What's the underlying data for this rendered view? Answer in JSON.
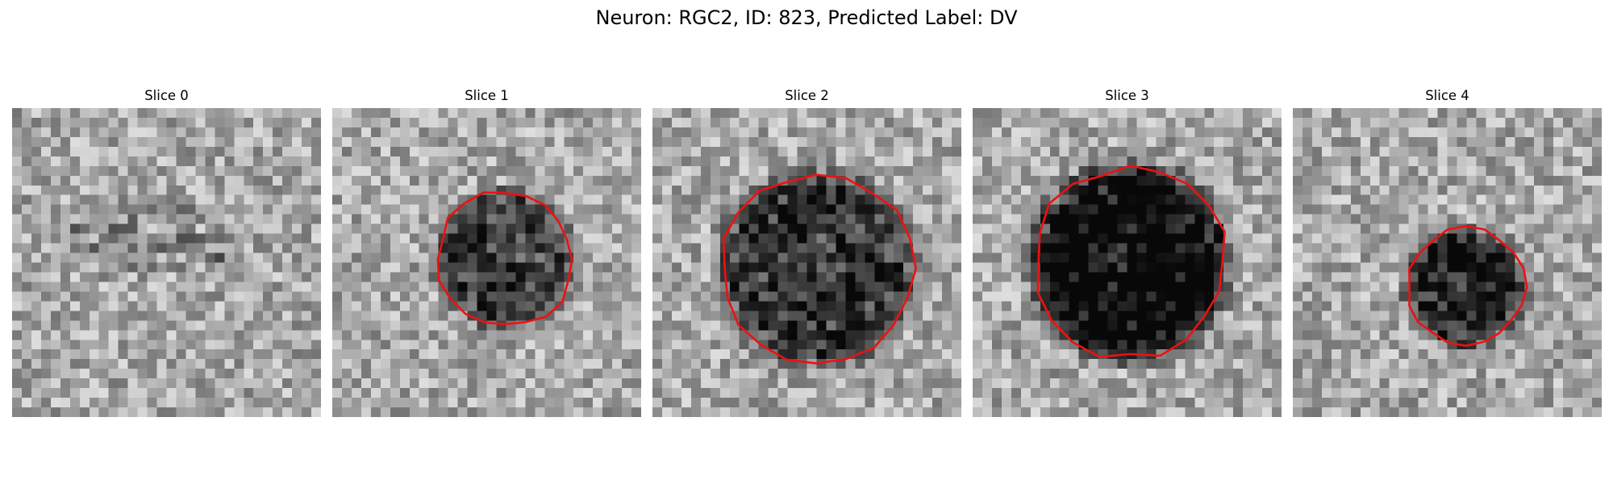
{
  "figure": {
    "title": "Neuron: RGC2, ID: 823, Predicted Label: DV",
    "colormap": "gray",
    "contour_color": "#ee1111",
    "slices": [
      {
        "label": "Slice 0",
        "has_contour": false,
        "center": [
          0.5,
          0.42
        ],
        "radius": 0.0,
        "darkness": 0.0,
        "seed": 11
      },
      {
        "label": "Slice 1",
        "has_contour": true,
        "center": [
          0.56,
          0.49
        ],
        "radius": 0.22,
        "darkness": 0.42,
        "seed": 23
      },
      {
        "label": "Slice 2",
        "has_contour": true,
        "center": [
          0.53,
          0.52
        ],
        "radius": 0.31,
        "darkness": 0.48,
        "seed": 37
      },
      {
        "label": "Slice 3",
        "has_contour": true,
        "center": [
          0.51,
          0.5
        ],
        "radius": 0.31,
        "darkness": 0.72,
        "seed": 41
      },
      {
        "label": "Slice 4",
        "has_contour": true,
        "center": [
          0.56,
          0.58
        ],
        "radius": 0.19,
        "darkness": 0.52,
        "seed": 59
      }
    ]
  }
}
